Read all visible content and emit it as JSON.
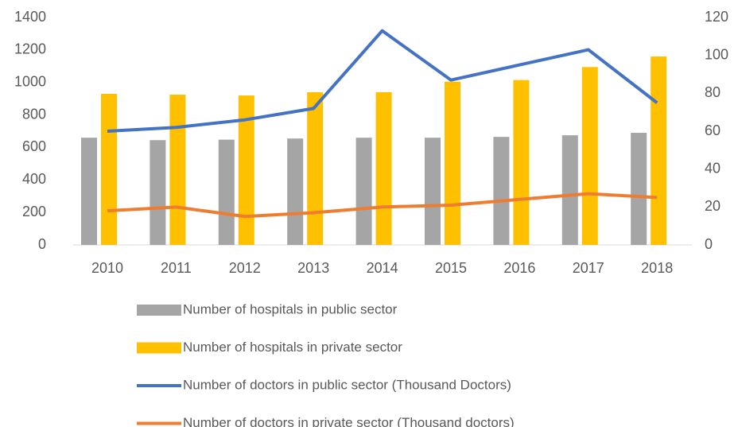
{
  "chart_data": {
    "type": "combo",
    "categories": [
      "2010",
      "2011",
      "2012",
      "2013",
      "2014",
      "2015",
      "2016",
      "2017",
      "2018"
    ],
    "series": [
      {
        "name": "Number of hospitals in public sector",
        "type": "bar",
        "color": "#a5a5a5",
        "values": [
          660,
          645,
          648,
          655,
          660,
          660,
          665,
          675,
          690
        ]
      },
      {
        "name": "Number of hospitals in private sector",
        "type": "bar",
        "color": "#ffc000",
        "values": [
          930,
          925,
          920,
          940,
          940,
          1005,
          1015,
          1095,
          1160
        ]
      },
      {
        "name": "Number of doctors in public sector (Thousand Doctors)",
        "type": "line",
        "axis": "y2",
        "color": "#4472c4",
        "values": [
          60,
          62,
          66,
          72,
          113,
          87,
          95,
          103,
          75
        ]
      },
      {
        "name": "Number of doctors in private sector (Thousand doctors)",
        "type": "line",
        "axis": "y2",
        "color": "#ed7d31",
        "values": [
          18,
          20,
          15,
          17,
          20,
          21,
          24,
          27,
          25
        ]
      }
    ],
    "ylim": [
      0,
      1400
    ],
    "yticks": [
      0,
      200,
      400,
      600,
      800,
      1000,
      1200,
      1400
    ],
    "y2lim": [
      0,
      120
    ],
    "y2ticks": [
      0,
      20,
      40,
      60,
      80,
      100,
      120
    ],
    "grid": false,
    "legend": "bottom"
  }
}
